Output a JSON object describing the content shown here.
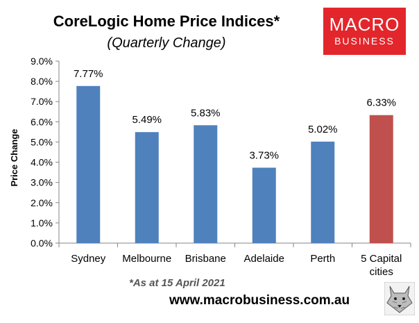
{
  "header": {
    "title": "CoreLogic Home Price Indices*",
    "subtitle": "(Quarterly Change)"
  },
  "logo": {
    "line1": "MACRO",
    "line2": "BUSINESS",
    "color": "#e3262b"
  },
  "footer": {
    "note": "*As at 15 April 2021",
    "url": "www.macrobusiness.com.au",
    "mascot_icon": "wolf-icon"
  },
  "chart_data": {
    "type": "bar",
    "categories": [
      "Sydney",
      "Melbourne",
      "Brisbane",
      "Adelaide",
      "Perth",
      "5 Capital cities"
    ],
    "values": [
      7.77,
      5.49,
      5.83,
      3.73,
      5.02,
      6.33
    ],
    "data_labels": [
      "7.77%",
      "5.49%",
      "5.83%",
      "3.73%",
      "5.02%",
      "6.33%"
    ],
    "bar_colors": [
      "#4f81bd",
      "#4f81bd",
      "#4f81bd",
      "#4f81bd",
      "#4f81bd",
      "#c0504d"
    ],
    "ylabel": "Price Change",
    "ylim": [
      0,
      9
    ],
    "yticks": [
      "0.0%",
      "1.0%",
      "2.0%",
      "3.0%",
      "4.0%",
      "5.0%",
      "6.0%",
      "7.0%",
      "8.0%",
      "9.0%"
    ],
    "grid": false,
    "legend": "none"
  }
}
